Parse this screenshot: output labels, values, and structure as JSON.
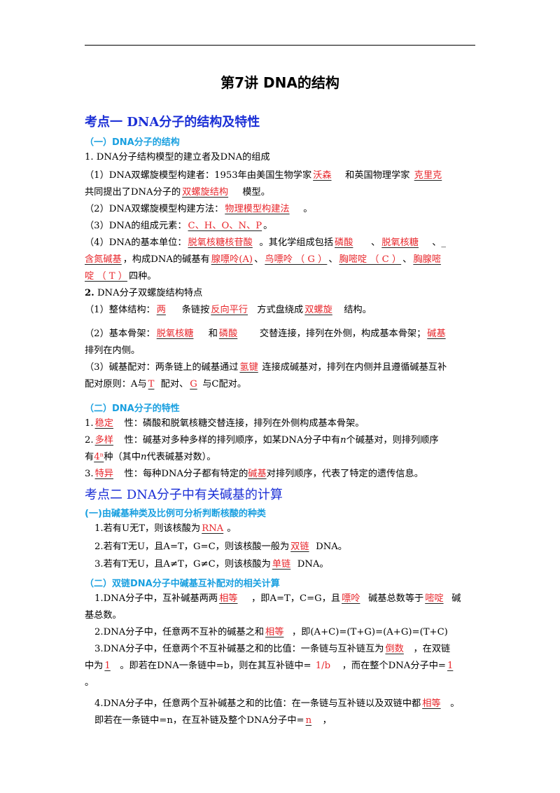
{
  "title": "第7讲  DNA的结构",
  "kp1": {
    "heading": "考点一   DNA分子的结构及特性",
    "s1": {
      "heading": "（一）DNA分子的结构",
      "l1": "1. DNA分子结构模型的建立者及DNA的组成",
      "l2": [
        "（1）DNA双螺旋模型构建者：1953年由美国生物学家",
        "沃森",
        "和英国物理学家 ",
        "克里克"
      ],
      "l3": [
        "共同提出了DNA分子的",
        "双螺旋结构",
        " 模型。"
      ],
      "l4": [
        "（2）DNA双螺旋模型构建方法：",
        "物理模型构建法",
        "。"
      ],
      "l5": [
        "（3）DNA的组成元素：",
        "C、H、O、N、P",
        "。"
      ],
      "l6": [
        "（4）DNA的基本单位：",
        "脱氧核糖核苷酸",
        "。其化学组成包括",
        "磷酸",
        "、",
        "脱氧核糖",
        "、_"
      ],
      "l7": [
        "含氮碱基",
        "，构成DNA的碱基有",
        "腺嘌呤(A)",
        "、",
        "鸟嘌呤 （ G ）",
        "、",
        "胸嘧啶 （ C ）",
        "、",
        "胸腺嘧"
      ],
      "l8": [
        "啶 （ T ）",
        "四种。"
      ],
      "l9": [
        "2.",
        " DNA分子双螺旋结构特点"
      ],
      "l10": [
        "（1）整体结构：",
        "两",
        "条链按",
        "反向平行",
        "方式盘绕成",
        "双螺旋",
        "结构。"
      ],
      "l11": [
        "（2）基本骨架：",
        "脱氧核糖",
        "和",
        "磷酸",
        "交替连接，排列在外侧，构成基本骨架；",
        "碱基"
      ],
      "l12": "排列在内侧。",
      "l13": [
        "（3）碱基配对：两条链上的碱基通过",
        "氢键",
        "连接成碱基对，排列在内侧并且遵循碱基互补"
      ],
      "l14": [
        "配对原则：A与",
        "T",
        "配对、",
        "G",
        "与C配对。"
      ]
    },
    "s2": {
      "heading": "（二）DNA分子的特性",
      "l1": [
        "1.",
        "稳定",
        "性：磷酸和脱氧核糖交替连接，排列在外侧构成基本骨架。"
      ],
      "l2": [
        "2.",
        "多样",
        "性：碱基对多种多样的排列顺序，如某DNA分子中有",
        "n",
        "个碱基对，则排列顺序"
      ],
      "l3": [
        "有",
        "4ⁿ",
        "种（其中",
        "n",
        "代表碱基对数）。"
      ],
      "l4": [
        "3.",
        "特异",
        "性：每种DNA分子都有特定的",
        "碱基",
        "对排列顺序，代表了特定的遗传信息。"
      ]
    }
  },
  "kp2": {
    "heading": "考点二   DNA分子中有关碱基的计算",
    "s1": {
      "heading": "(一)由碱基种类及比例可分析判断核酸的种类",
      "l1": [
        "1.若有U无T，则该核酸为",
        "RNA",
        "。"
      ],
      "l2": [
        "2.若有T无U，且A=T，G=C，则该核酸一般为",
        "双链",
        "DNA。"
      ],
      "l3": [
        "3.若有T无U，且A≠T，G≠C，则该核酸为",
        "单链",
        "DNA。"
      ]
    },
    "s2": {
      "heading": "（二）双链DNA分子中碱基互补配对的相关计算",
      "l1": [
        "1.DNA分子中，互补碱基两两",
        "相等",
        "，即A=T，C=G，且",
        "嘌呤",
        "碱基总数等于",
        "嘧啶",
        "碱"
      ],
      "l2": "基总数。",
      "l3": [
        "2.DNA分子中，任意两不互补的碱基之和",
        "相等",
        "，即(A+C)=(T+G)=(A+G)=(T+C)"
      ],
      "l4": [
        "3.DNA分子中，任意两个不互补碱基之和的比值：一条链与互补链互为",
        "倒数",
        "，在双链"
      ],
      "l5": [
        "中为",
        "1",
        "。即若在DNA一条链中=b，则在其互补链中= ",
        "1/b",
        "，而在整个DNA分子中=",
        "1"
      ],
      "l6": "。",
      "l7": [
        "4.DNA分子中，任意两个互补碱基之和的比值：在一条链与互补链以及双链中都",
        "相等",
        "。"
      ],
      "l8": [
        "即若在一条链中=n，在互补链及整个DNA分子中=",
        "n",
        "，"
      ]
    }
  }
}
